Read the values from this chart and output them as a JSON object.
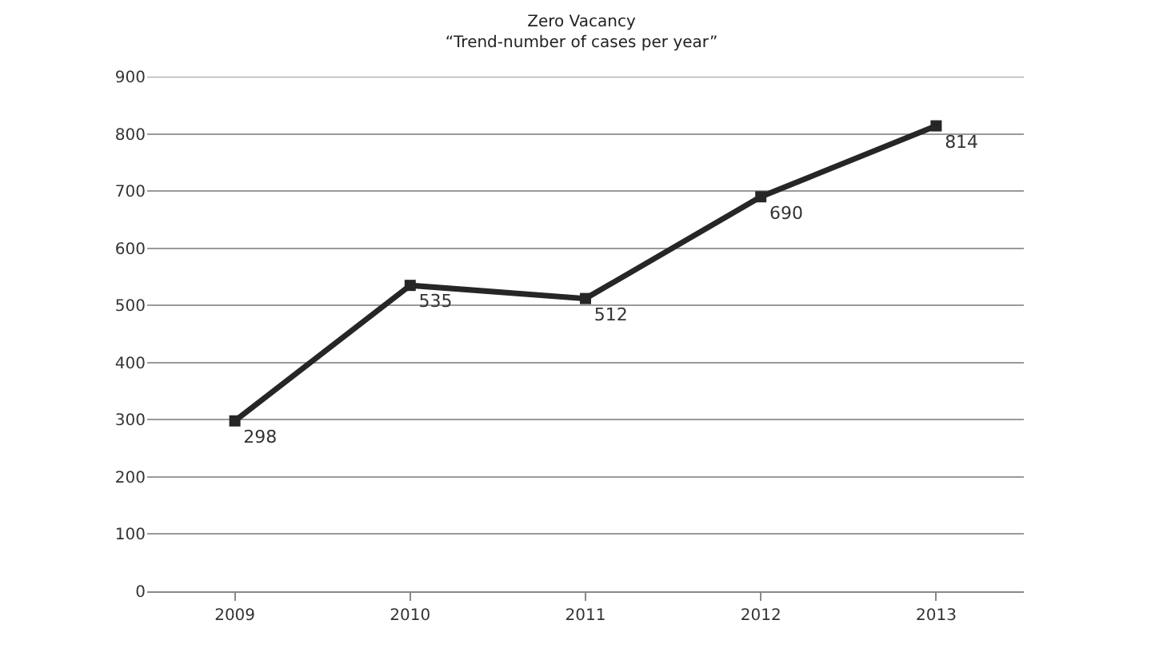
{
  "chart_data": {
    "type": "line",
    "title": "Zero Vacancy",
    "subtitle": "“Trend-number of cases per year”",
    "categories": [
      "2009",
      "2010",
      "2011",
      "2012",
      "2013"
    ],
    "series": [
      {
        "color": "#262626",
        "values": [
          298,
          535,
          512,
          690,
          814
        ]
      }
    ],
    "ylim": [
      0,
      900
    ],
    "yticks": [
      0,
      100,
      200,
      300,
      400,
      500,
      600,
      700,
      800,
      900
    ],
    "grid": "y",
    "marker": "square",
    "line_style": "solid",
    "data_labels": true
  }
}
